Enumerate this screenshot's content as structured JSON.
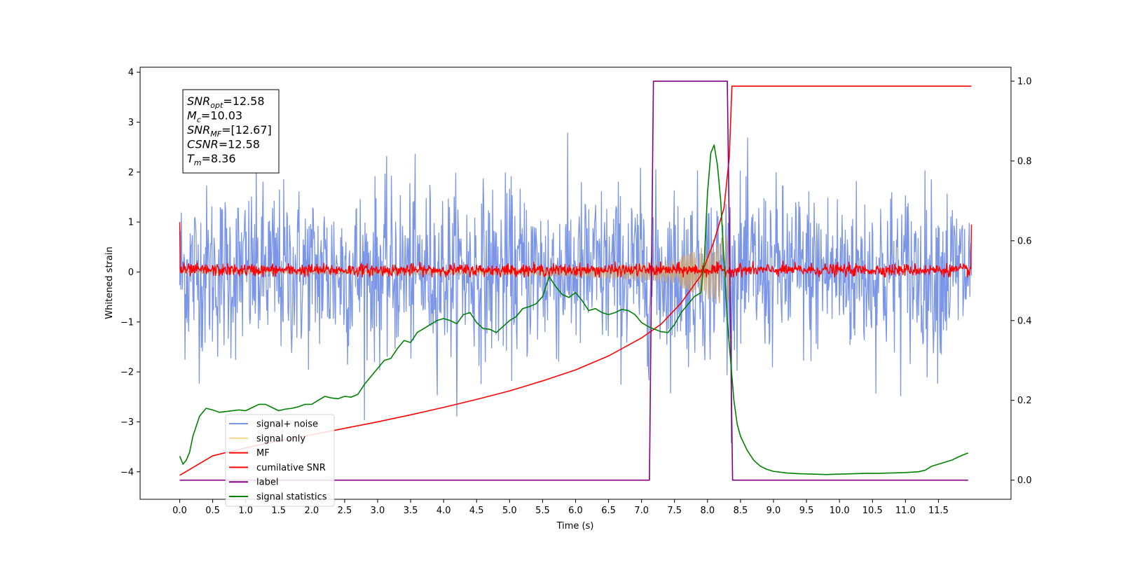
{
  "chart_data": {
    "type": "line",
    "title": "",
    "xlabel": "Time (s)",
    "ylabel": "Whitened strain",
    "xlim": [
      -0.6,
      12.6
    ],
    "ylim_left": [
      -4.55,
      4.1
    ],
    "ylim_right": [
      -0.048,
      1.035
    ],
    "xticks": [
      0.0,
      0.5,
      1.0,
      1.5,
      2.0,
      2.5,
      3.0,
      3.5,
      4.0,
      4.5,
      5.0,
      5.5,
      6.0,
      6.5,
      7.0,
      7.5,
      8.0,
      8.5,
      9.0,
      9.5,
      10.0,
      10.5,
      11.0,
      11.5
    ],
    "xtick_labels": [
      "0.0",
      "0.5",
      "1.0",
      "1.5",
      "2.0",
      "2.5",
      "3.0",
      "3.5",
      "4.0",
      "4.5",
      "5.0",
      "5.5",
      "6.0",
      "6.5",
      "7.0",
      "7.5",
      "8.0",
      "8.5",
      "9.0",
      "9.5",
      "10.0",
      "10.5",
      "11.0",
      "11.5"
    ],
    "yticks_left": [
      4,
      3,
      2,
      1,
      0,
      -1,
      -2,
      -3,
      -4
    ],
    "ytick_labels_left": [
      "4",
      "3",
      "2",
      "1",
      "0",
      "−1",
      "−2",
      "−3",
      "−4"
    ],
    "yticks_right": [
      1.0,
      0.8,
      0.6,
      0.4,
      0.2,
      0.0
    ],
    "ytick_labels_right": [
      "1.0",
      "0.8",
      "0.6",
      "0.4",
      "0.2",
      "0.0"
    ],
    "grid": false,
    "legend_position": "lower-left",
    "legend": [
      {
        "label": "signal+ noise",
        "color": "#7b96e8"
      },
      {
        "label": "signal only",
        "color": "#f7d488"
      },
      {
        "label": "MF",
        "color": "#ff0000"
      },
      {
        "label": "cumilative SNR",
        "color": "#ff0000"
      },
      {
        "label": "label",
        "color": "#800080"
      },
      {
        "label": "signal statistics",
        "color": "#008000"
      }
    ],
    "info_box": [
      {
        "main": "SNR",
        "sub": "opt",
        "value": "=12.58"
      },
      {
        "main": "M",
        "sub": "c",
        "value": "=10.03"
      },
      {
        "main": "SNR",
        "sub": "MF",
        "value": "=[12.67]"
      },
      {
        "main": "CSNR",
        "sub": "",
        "value": "=12.58"
      },
      {
        "main": "T",
        "sub": "m",
        "value": "=8.36"
      }
    ],
    "series": [
      {
        "name": "signal+ noise",
        "axis": "left",
        "color": "#7b96e8",
        "kind": "noise",
        "x_range": [
          0.0,
          12.0
        ],
        "sigma": 1.0,
        "points": 1500,
        "clip": [
          -4.1,
          3.35
        ]
      },
      {
        "name": "signal only",
        "axis": "left",
        "color": "#c9a57a",
        "kind": "chirp-envelope",
        "x_range": [
          0.0,
          8.36
        ],
        "envelope": [
          [
            0.0,
            0.03
          ],
          [
            5.0,
            0.06
          ],
          [
            6.5,
            0.13
          ],
          [
            7.5,
            0.25
          ],
          [
            8.0,
            0.55
          ],
          [
            8.3,
            0.75
          ],
          [
            8.36,
            0.2
          ]
        ]
      },
      {
        "name": "MF",
        "axis": "left",
        "color": "#ff0000",
        "kind": "mf-noise",
        "x_range": [
          0.0,
          12.0
        ],
        "sigma": 0.06,
        "points": 1500,
        "clip": [
          -0.1,
          0.22
        ],
        "start_value": 1.0,
        "end_value": 0.95
      },
      {
        "name": "cumilative SNR",
        "axis": "left",
        "color": "#ff0000",
        "kind": "line",
        "x": [
          0.0,
          0.5,
          1.0,
          1.5,
          2.0,
          2.5,
          3.0,
          3.5,
          4.0,
          4.5,
          5.0,
          5.5,
          6.0,
          6.5,
          7.0,
          7.3,
          7.6,
          7.9,
          8.1,
          8.25,
          8.33,
          8.37,
          12.0
        ],
        "y": [
          -4.07,
          -3.68,
          -3.52,
          -3.38,
          -3.26,
          -3.13,
          -3.0,
          -2.86,
          -2.71,
          -2.55,
          -2.38,
          -2.18,
          -1.96,
          -1.68,
          -1.32,
          -1.04,
          -0.62,
          -0.07,
          0.62,
          1.28,
          2.3,
          3.72,
          3.72
        ]
      },
      {
        "name": "label",
        "axis": "right",
        "color": "#800080",
        "kind": "line",
        "x": [
          0.0,
          7.12,
          7.18,
          8.3,
          8.38,
          11.95
        ],
        "y": [
          0.0,
          0.0,
          1.0,
          1.0,
          0.0,
          0.0
        ]
      },
      {
        "name": "signal statistics",
        "axis": "right",
        "color": "#008000",
        "kind": "line",
        "x": [
          0.0,
          0.05,
          0.1,
          0.15,
          0.2,
          0.3,
          0.4,
          0.5,
          0.6,
          0.7,
          0.8,
          0.9,
          1.0,
          1.1,
          1.2,
          1.3,
          1.4,
          1.5,
          1.6,
          1.7,
          1.8,
          1.9,
          2.0,
          2.1,
          2.2,
          2.3,
          2.4,
          2.5,
          2.6,
          2.7,
          2.8,
          2.9,
          3.0,
          3.1,
          3.2,
          3.3,
          3.4,
          3.5,
          3.6,
          3.7,
          3.8,
          3.9,
          4.0,
          4.1,
          4.2,
          4.3,
          4.4,
          4.5,
          4.6,
          4.7,
          4.8,
          4.9,
          5.0,
          5.1,
          5.2,
          5.3,
          5.4,
          5.5,
          5.6,
          5.7,
          5.8,
          5.9,
          6.0,
          6.1,
          6.2,
          6.3,
          6.4,
          6.5,
          6.6,
          6.7,
          6.8,
          6.9,
          7.0,
          7.1,
          7.2,
          7.3,
          7.4,
          7.5,
          7.6,
          7.7,
          7.8,
          7.9,
          7.95,
          8.0,
          8.05,
          8.1,
          8.15,
          8.2,
          8.25,
          8.3,
          8.35,
          8.4,
          8.45,
          8.5,
          8.6,
          8.7,
          8.8,
          8.9,
          9.0,
          9.2,
          9.4,
          9.6,
          9.8,
          10.0,
          10.2,
          10.4,
          10.6,
          10.8,
          11.0,
          11.2,
          11.3,
          11.4,
          11.5,
          11.6,
          11.7,
          11.8,
          11.9,
          11.95
        ],
        "y": [
          0.06,
          0.04,
          0.05,
          0.07,
          0.11,
          0.16,
          0.18,
          0.176,
          0.17,
          0.172,
          0.174,
          0.176,
          0.174,
          0.182,
          0.19,
          0.19,
          0.182,
          0.174,
          0.178,
          0.18,
          0.184,
          0.19,
          0.19,
          0.2,
          0.21,
          0.206,
          0.204,
          0.21,
          0.208,
          0.215,
          0.24,
          0.26,
          0.28,
          0.3,
          0.305,
          0.33,
          0.35,
          0.345,
          0.37,
          0.38,
          0.39,
          0.4,
          0.405,
          0.4,
          0.392,
          0.415,
          0.42,
          0.395,
          0.38,
          0.378,
          0.37,
          0.385,
          0.4,
          0.41,
          0.43,
          0.435,
          0.442,
          0.46,
          0.51,
          0.485,
          0.465,
          0.458,
          0.47,
          0.45,
          0.425,
          0.43,
          0.42,
          0.415,
          0.42,
          0.428,
          0.425,
          0.415,
          0.395,
          0.385,
          0.378,
          0.372,
          0.37,
          0.39,
          0.42,
          0.44,
          0.46,
          0.47,
          0.55,
          0.72,
          0.82,
          0.84,
          0.79,
          0.7,
          0.55,
          0.4,
          0.3,
          0.2,
          0.14,
          0.11,
          0.075,
          0.05,
          0.035,
          0.027,
          0.022,
          0.018,
          0.016,
          0.015,
          0.014,
          0.015,
          0.016,
          0.017,
          0.017,
          0.018,
          0.019,
          0.021,
          0.025,
          0.035,
          0.04,
          0.045,
          0.05,
          0.058,
          0.065,
          0.068
        ]
      }
    ]
  }
}
